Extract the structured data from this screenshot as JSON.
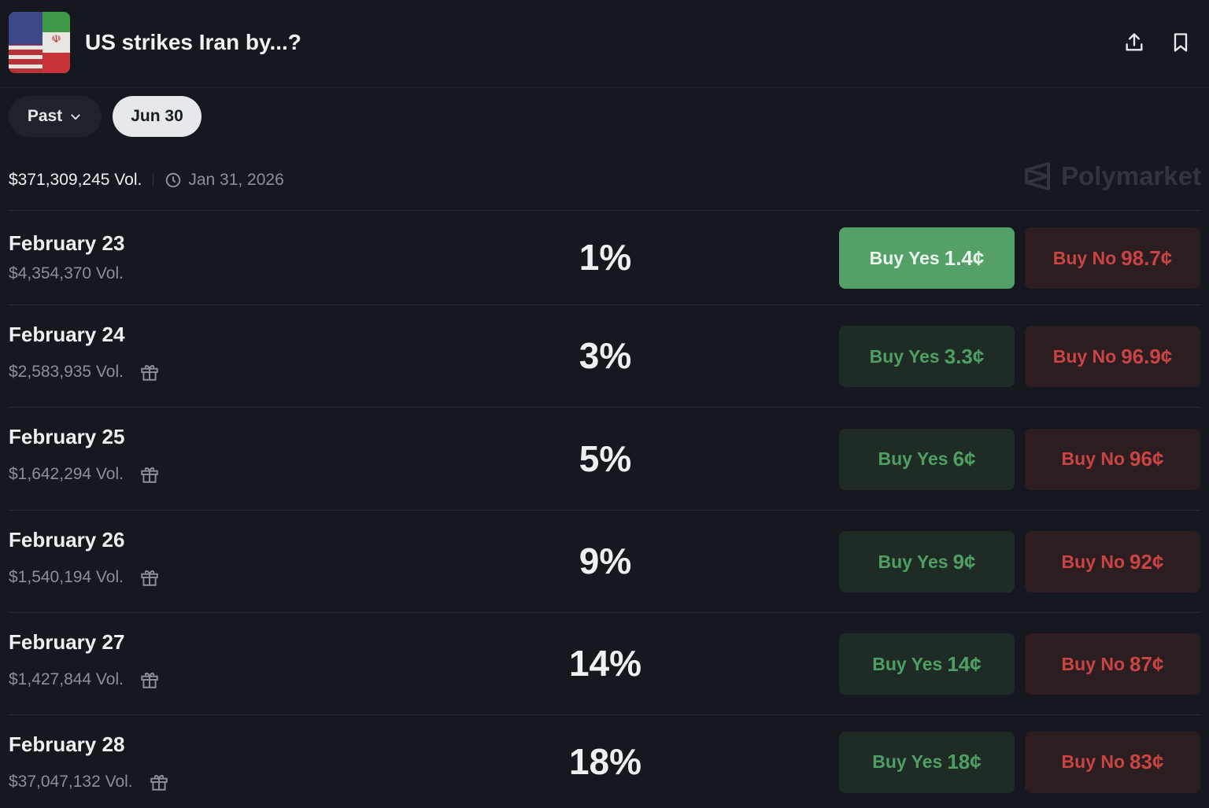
{
  "header": {
    "title": "US strikes Iran by...?",
    "logo": "us-iran-flag",
    "share_icon": "share-icon",
    "bookmark_icon": "bookmark-icon"
  },
  "filters": {
    "past_label": "Past",
    "selected_label": "Jun 30"
  },
  "meta": {
    "volume": "$371,309,245 Vol.",
    "end_date": "Jan 31, 2026",
    "brand": "Polymarket"
  },
  "colors": {
    "yes": "#55a068",
    "no": "#c94444",
    "background": "#15181e"
  },
  "markets": [
    {
      "name": "February 23",
      "volume": "$4,354,370 Vol.",
      "chance": "1%",
      "yes_label": "Buy Yes",
      "yes_price": "1.4¢",
      "no_label": "Buy No",
      "no_price": "98.7¢",
      "gift": false
    },
    {
      "name": "February 24",
      "volume": "$2,583,935 Vol.",
      "chance": "3%",
      "yes_label": "Buy Yes",
      "yes_price": "3.3¢",
      "no_label": "Buy No",
      "no_price": "96.9¢",
      "gift": true
    },
    {
      "name": "February 25",
      "volume": "$1,642,294 Vol.",
      "chance": "5%",
      "yes_label": "Buy Yes",
      "yes_price": "6¢",
      "no_label": "Buy No",
      "no_price": "96¢",
      "gift": true
    },
    {
      "name": "February 26",
      "volume": "$1,540,194 Vol.",
      "chance": "9%",
      "yes_label": "Buy Yes",
      "yes_price": "9¢",
      "no_label": "Buy No",
      "no_price": "92¢",
      "gift": true
    },
    {
      "name": "February 27",
      "volume": "$1,427,844 Vol.",
      "chance": "14%",
      "yes_label": "Buy Yes",
      "yes_price": "14¢",
      "no_label": "Buy No",
      "no_price": "87¢",
      "gift": true
    },
    {
      "name": "February 28",
      "volume": "$37,047,132 Vol.",
      "chance": "18%",
      "yes_label": "Buy Yes",
      "yes_price": "18¢",
      "no_label": "Buy No",
      "no_price": "83¢",
      "gift": true
    }
  ]
}
